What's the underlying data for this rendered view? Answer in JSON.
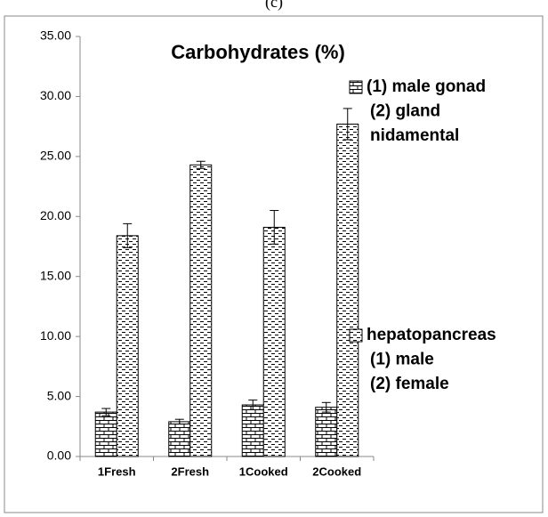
{
  "chart_data": {
    "type": "bar",
    "panel_label": "(c)",
    "title": "Carbohydrates  (%)",
    "categories": [
      "1Fresh",
      "2Fresh",
      "1Cooked",
      "2Cooked"
    ],
    "series": [
      {
        "name": [
          "(1) male gonad",
          "(2) gland",
          "nidamental"
        ],
        "pattern": "brick",
        "values": [
          3.7,
          2.9,
          4.3,
          4.1
        ],
        "errors": [
          0.3,
          0.2,
          0.4,
          0.4
        ]
      },
      {
        "name": [
          "hepatopancreas",
          "(1) male",
          "(2) female"
        ],
        "pattern": "dash",
        "values": [
          18.4,
          24.3,
          19.1,
          27.7
        ],
        "errors": [
          1.0,
          0.3,
          1.4,
          1.3
        ]
      }
    ],
    "ylim": [
      0,
      35
    ],
    "yticks": [
      {
        "value": 0,
        "label": "0.00"
      },
      {
        "value": 5,
        "label": "5.00"
      },
      {
        "value": 10,
        "label": "10.00"
      },
      {
        "value": 15,
        "label": "15.00"
      },
      {
        "value": 20,
        "label": "20.00"
      },
      {
        "value": 25,
        "label": "25.00"
      },
      {
        "value": 30,
        "label": "30.00"
      },
      {
        "value": 35,
        "label": "35.00"
      }
    ],
    "grid": false
  }
}
